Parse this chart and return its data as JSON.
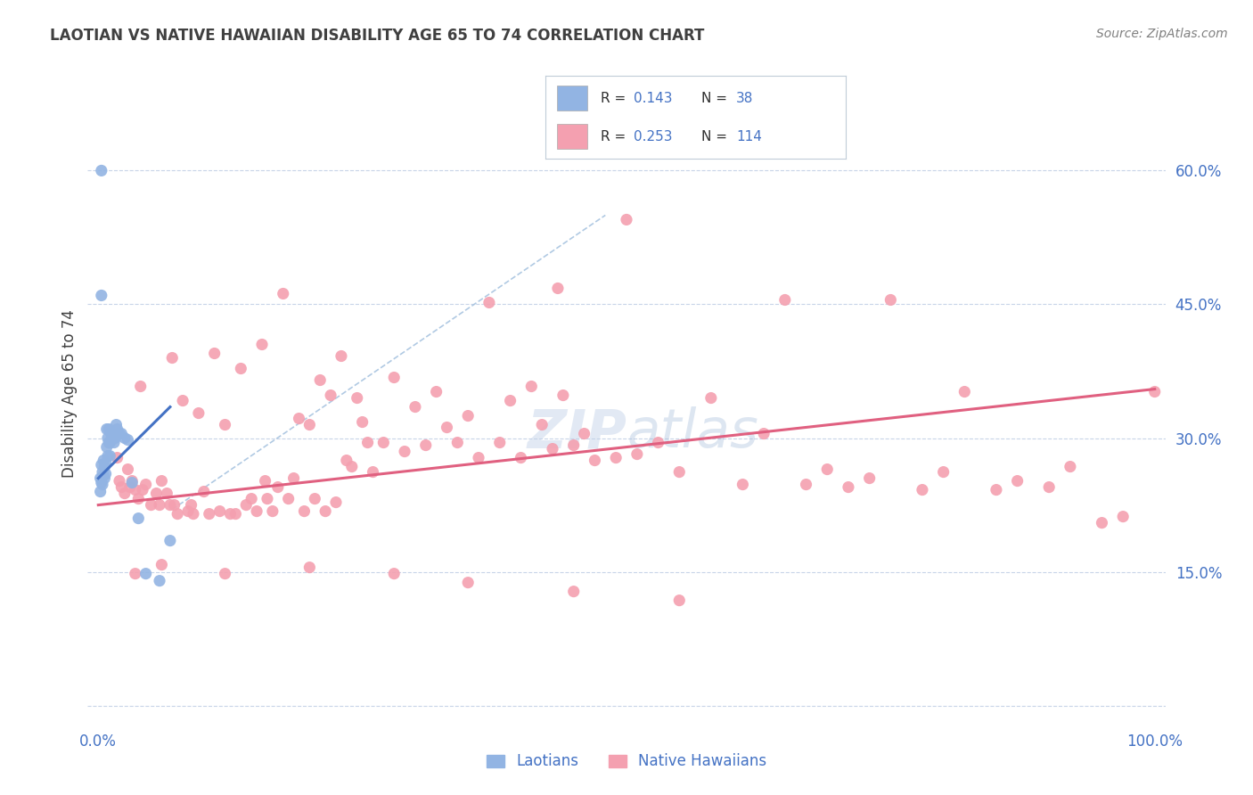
{
  "title": "LAOTIAN VS NATIVE HAWAIIAN DISABILITY AGE 65 TO 74 CORRELATION CHART",
  "source": "Source: ZipAtlas.com",
  "ylabel": "Disability Age 65 to 74",
  "watermark": "ZIPatlas",
  "xlim": [
    -0.01,
    1.01
  ],
  "ylim": [
    -0.02,
    0.72
  ],
  "ytick_positions": [
    0.0,
    0.15,
    0.3,
    0.45,
    0.6
  ],
  "ytick_labels": [
    "",
    "15.0%",
    "30.0%",
    "45.0%",
    "60.0%"
  ],
  "xtick_positions": [
    0.0,
    0.25,
    0.5,
    0.75,
    1.0
  ],
  "R_laotian": 0.143,
  "N_laotian": 38,
  "R_hawaiian": 0.253,
  "N_hawaiian": 114,
  "laotian_color": "#92b4e3",
  "hawaiian_color": "#f4a0b0",
  "laotian_line_color": "#4472c4",
  "hawaiian_line_color": "#e06080",
  "diag_line_color": "#a8c4e0",
  "background_color": "#ffffff",
  "grid_color": "#c8d4e8",
  "title_color": "#404040",
  "axis_color": "#4472c4",
  "legend_border_color": "#c0ccd8",
  "laotian_x": [
    0.002,
    0.002,
    0.003,
    0.003,
    0.003,
    0.004,
    0.004,
    0.005,
    0.005,
    0.006,
    0.006,
    0.007,
    0.007,
    0.008,
    0.008,
    0.009,
    0.009,
    0.01,
    0.01,
    0.011,
    0.011,
    0.012,
    0.013,
    0.014,
    0.015,
    0.016,
    0.017,
    0.018,
    0.02,
    0.022,
    0.025,
    0.028,
    0.032,
    0.038,
    0.045,
    0.058,
    0.068,
    0.003
  ],
  "laotian_y": [
    0.255,
    0.24,
    0.6,
    0.27,
    0.25,
    0.262,
    0.248,
    0.275,
    0.258,
    0.268,
    0.255,
    0.272,
    0.26,
    0.31,
    0.29,
    0.3,
    0.28,
    0.31,
    0.295,
    0.295,
    0.28,
    0.305,
    0.305,
    0.3,
    0.295,
    0.3,
    0.315,
    0.31,
    0.305,
    0.305,
    0.3,
    0.298,
    0.25,
    0.21,
    0.148,
    0.14,
    0.185,
    0.46
  ],
  "hawaiian_x": [
    0.018,
    0.02,
    0.022,
    0.025,
    0.028,
    0.03,
    0.032,
    0.035,
    0.038,
    0.04,
    0.042,
    0.045,
    0.05,
    0.055,
    0.058,
    0.06,
    0.065,
    0.068,
    0.07,
    0.072,
    0.075,
    0.08,
    0.085,
    0.088,
    0.09,
    0.095,
    0.1,
    0.105,
    0.11,
    0.115,
    0.12,
    0.125,
    0.13,
    0.135,
    0.14,
    0.145,
    0.15,
    0.155,
    0.158,
    0.16,
    0.165,
    0.17,
    0.175,
    0.18,
    0.185,
    0.19,
    0.195,
    0.2,
    0.205,
    0.21,
    0.215,
    0.22,
    0.225,
    0.23,
    0.235,
    0.24,
    0.245,
    0.25,
    0.255,
    0.26,
    0.27,
    0.28,
    0.29,
    0.3,
    0.31,
    0.32,
    0.33,
    0.34,
    0.35,
    0.36,
    0.37,
    0.38,
    0.39,
    0.4,
    0.41,
    0.42,
    0.43,
    0.44,
    0.45,
    0.46,
    0.47,
    0.49,
    0.5,
    0.51,
    0.53,
    0.55,
    0.58,
    0.61,
    0.63,
    0.65,
    0.67,
    0.69,
    0.71,
    0.73,
    0.75,
    0.78,
    0.8,
    0.82,
    0.85,
    0.87,
    0.9,
    0.92,
    0.95,
    0.97,
    1.0,
    0.435,
    0.035,
    0.06,
    0.12,
    0.2,
    0.28,
    0.35,
    0.45,
    0.55
  ],
  "hawaiian_y": [
    0.278,
    0.252,
    0.245,
    0.238,
    0.265,
    0.245,
    0.252,
    0.242,
    0.232,
    0.358,
    0.242,
    0.248,
    0.225,
    0.238,
    0.225,
    0.252,
    0.238,
    0.225,
    0.39,
    0.225,
    0.215,
    0.342,
    0.218,
    0.225,
    0.215,
    0.328,
    0.24,
    0.215,
    0.395,
    0.218,
    0.315,
    0.215,
    0.215,
    0.378,
    0.225,
    0.232,
    0.218,
    0.405,
    0.252,
    0.232,
    0.218,
    0.245,
    0.462,
    0.232,
    0.255,
    0.322,
    0.218,
    0.315,
    0.232,
    0.365,
    0.218,
    0.348,
    0.228,
    0.392,
    0.275,
    0.268,
    0.345,
    0.318,
    0.295,
    0.262,
    0.295,
    0.368,
    0.285,
    0.335,
    0.292,
    0.352,
    0.312,
    0.295,
    0.325,
    0.278,
    0.452,
    0.295,
    0.342,
    0.278,
    0.358,
    0.315,
    0.288,
    0.348,
    0.292,
    0.305,
    0.275,
    0.278,
    0.545,
    0.282,
    0.295,
    0.262,
    0.345,
    0.248,
    0.305,
    0.455,
    0.248,
    0.265,
    0.245,
    0.255,
    0.455,
    0.242,
    0.262,
    0.352,
    0.242,
    0.252,
    0.245,
    0.268,
    0.205,
    0.212,
    0.352,
    0.468,
    0.148,
    0.158,
    0.148,
    0.155,
    0.148,
    0.138,
    0.128,
    0.118
  ]
}
